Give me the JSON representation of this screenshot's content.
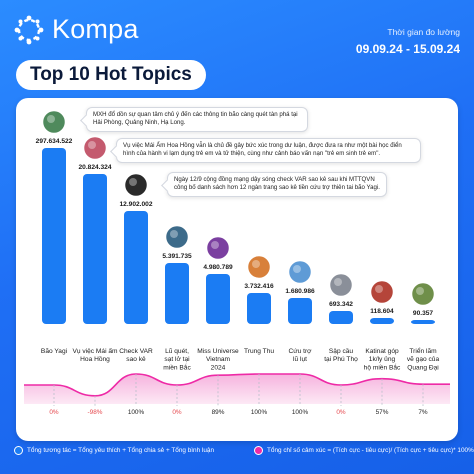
{
  "brand": {
    "name": "Kompa"
  },
  "period": {
    "label": "Thời gian đo lường",
    "range": "09.09.24 - 15.09.24"
  },
  "title": "Top 10 Hot Topics",
  "colors": {
    "bar": "#1b7cf3",
    "sentiment": "#ee2aa6",
    "label_negative": "#e5484d",
    "label_neutral": "#222222"
  },
  "callouts": [
    {
      "text": "MXH đổ dồn sự quan tâm chủ ý đến các thông tin bão càng quét tàn phá tại Hải Phòng, Quảng Ninh, Hạ Long."
    },
    {
      "text": "Vụ việc Mái Ấm Hoa Hồng vẫn là chủ đề gây bức xúc trong dư luận, được đưa ra như một bài học điển hình của hành vi lạm dụng trẻ em và tử thiện, cùng như cảnh báo vấn nạn \"trẻ em sinh trẻ em\"."
    },
    {
      "text": "Ngày 12/9 cộng đồng mạng dậy sóng check VAR sao kê sau khi MTTQVN công bố danh sách hơn 12 ngàn trang sao kê tiền cứu trợ thiên tai bão Yagi."
    }
  ],
  "chart_data": {
    "type": "bar",
    "title": "Top 10 Hot Topics",
    "categories": [
      "Bão Yagi",
      "Vụ việc Mái ấm Hoa Hồng",
      "Check VAR sao kê",
      "Lũ quét, sạt lở tại miền Bắc",
      "Miss Universe Vietnam 2024",
      "Trung Thu",
      "Cứu trợ lũ lụt",
      "Sập cầu tại Phú Thọ",
      "Katinat góp 1k/ly ủng hộ miền Bắc",
      "Triển lãm vẽ gạo của Quang Đại"
    ],
    "category_lines": [
      [
        "Bão Yagi"
      ],
      [
        "Vụ việc Mái ấm",
        "Hoa Hồng"
      ],
      [
        "Check VAR",
        "sao kê"
      ],
      [
        "Lũ quét,",
        "sạt lở tại",
        "miền Bắc"
      ],
      [
        "Miss Universe",
        "Vietnam",
        "2024"
      ],
      [
        "Trung Thu"
      ],
      [
        "Cứu trợ",
        "lũ lụt"
      ],
      [
        "Sập cầu",
        "tại Phú Thọ"
      ],
      [
        "Katinat góp",
        "1k/ly ủng",
        "hộ miền Bắc"
      ],
      [
        "Triển lãm",
        "vẽ gạo của",
        "Quang Đại"
      ]
    ],
    "values": [
      297634522,
      20824324,
      12902002,
      5391735,
      4980789,
      3732416,
      1680986,
      693342,
      118604,
      90357
    ],
    "value_labels": [
      "297.634.522",
      "20.824.324",
      "12.902.002",
      "5.391.735",
      "4.980.789",
      "3.732.416",
      "1.680.986",
      "693.342",
      "118.604",
      "90.357"
    ],
    "sentiment": [
      0,
      -98,
      100,
      0,
      89,
      100,
      100,
      0,
      57,
      7
    ],
    "sentiment_labels": [
      "0%",
      "-98%",
      "100%",
      "0%",
      "89%",
      "100%",
      "100%",
      "0%",
      "57%",
      "7%"
    ],
    "sentiment_range": [
      -100,
      100
    ],
    "legend": [
      {
        "text": "Tổng tương tác = Tổng yêu thích + Tổng chia sẻ + Tổng bình luận"
      },
      {
        "text": "Tổng chỉ số cảm xúc = (Tích cực - tiêu cực)/ (Tích cực + tiêu cực)* 100%"
      }
    ]
  }
}
